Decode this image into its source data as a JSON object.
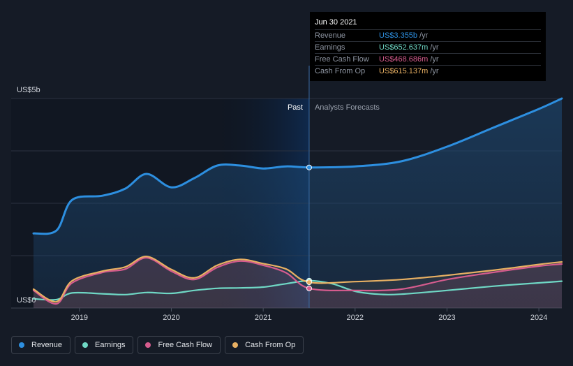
{
  "chart_data": {
    "type": "area",
    "x_domain": [
      2018.5,
      2024.25
    ],
    "y_domain_billions": [
      0,
      5
    ],
    "y_tick_labels": [
      "US$5b",
      "US$0"
    ],
    "x_ticks": [
      "2019",
      "2020",
      "2021",
      "2022",
      "2023",
      "2024"
    ],
    "divider_x": 2021.5,
    "past_label": "Past",
    "forecast_label": "Analysts Forecasts",
    "series": [
      {
        "name": "Revenue",
        "color": "#2d8fe0",
        "points": [
          [
            2018.5,
            1.78
          ],
          [
            2018.75,
            1.85
          ],
          [
            2018.92,
            2.58
          ],
          [
            2019.25,
            2.68
          ],
          [
            2019.5,
            2.85
          ],
          [
            2019.73,
            3.2
          ],
          [
            2020.0,
            2.88
          ],
          [
            2020.25,
            3.1
          ],
          [
            2020.5,
            3.4
          ],
          [
            2020.75,
            3.4
          ],
          [
            2021.0,
            3.33
          ],
          [
            2021.25,
            3.38
          ],
          [
            2021.5,
            3.355
          ],
          [
            2022.0,
            3.38
          ],
          [
            2022.5,
            3.5
          ],
          [
            2023.0,
            3.85
          ],
          [
            2023.5,
            4.3
          ],
          [
            2024.0,
            4.75
          ],
          [
            2024.25,
            5.0
          ]
        ]
      },
      {
        "name": "Earnings",
        "color": "#6fd8c5",
        "points": [
          [
            2018.5,
            0.22
          ],
          [
            2018.75,
            0.2
          ],
          [
            2018.92,
            0.36
          ],
          [
            2019.25,
            0.34
          ],
          [
            2019.5,
            0.32
          ],
          [
            2019.73,
            0.37
          ],
          [
            2020.0,
            0.35
          ],
          [
            2020.25,
            0.42
          ],
          [
            2020.5,
            0.47
          ],
          [
            2020.75,
            0.48
          ],
          [
            2021.0,
            0.5
          ],
          [
            2021.25,
            0.58
          ],
          [
            2021.5,
            0.652
          ],
          [
            2021.75,
            0.58
          ],
          [
            2022.0,
            0.4
          ],
          [
            2022.25,
            0.33
          ],
          [
            2022.5,
            0.33
          ],
          [
            2023.0,
            0.42
          ],
          [
            2023.5,
            0.52
          ],
          [
            2024.0,
            0.6
          ],
          [
            2024.25,
            0.64
          ]
        ]
      },
      {
        "name": "Free Cash Flow",
        "color": "#d65c8e",
        "points": [
          [
            2018.5,
            0.42
          ],
          [
            2018.75,
            0.1
          ],
          [
            2018.92,
            0.6
          ],
          [
            2019.25,
            0.85
          ],
          [
            2019.5,
            0.93
          ],
          [
            2019.73,
            1.2
          ],
          [
            2020.0,
            0.88
          ],
          [
            2020.25,
            0.68
          ],
          [
            2020.5,
            0.97
          ],
          [
            2020.75,
            1.12
          ],
          [
            2021.0,
            1.02
          ],
          [
            2021.25,
            0.84
          ],
          [
            2021.5,
            0.469
          ],
          [
            2022.0,
            0.42
          ],
          [
            2022.5,
            0.45
          ],
          [
            2023.0,
            0.68
          ],
          [
            2023.5,
            0.85
          ],
          [
            2024.0,
            1.0
          ],
          [
            2024.25,
            1.05
          ]
        ]
      },
      {
        "name": "Cash From Op",
        "color": "#e8b063",
        "points": [
          [
            2018.5,
            0.45
          ],
          [
            2018.75,
            0.15
          ],
          [
            2018.92,
            0.65
          ],
          [
            2019.25,
            0.88
          ],
          [
            2019.5,
            0.98
          ],
          [
            2019.73,
            1.23
          ],
          [
            2020.0,
            0.92
          ],
          [
            2020.25,
            0.72
          ],
          [
            2020.5,
            1.02
          ],
          [
            2020.75,
            1.16
          ],
          [
            2021.0,
            1.06
          ],
          [
            2021.25,
            0.93
          ],
          [
            2021.5,
            0.615
          ],
          [
            2022.0,
            0.63
          ],
          [
            2022.5,
            0.68
          ],
          [
            2023.0,
            0.78
          ],
          [
            2023.5,
            0.9
          ],
          [
            2024.0,
            1.04
          ],
          [
            2024.25,
            1.1
          ]
        ]
      }
    ]
  },
  "tooltip": {
    "date": "Jun 30 2021",
    "rows": [
      {
        "label": "Revenue",
        "value": "US$3.355b",
        "unit": "/yr",
        "color": "#2d8fe0"
      },
      {
        "label": "Earnings",
        "value": "US$652.637m",
        "unit": "/yr",
        "color": "#6fd8c5"
      },
      {
        "label": "Free Cash Flow",
        "value": "US$468.686m",
        "unit": "/yr",
        "color": "#d65c8e"
      },
      {
        "label": "Cash From Op",
        "value": "US$615.137m",
        "unit": "/yr",
        "color": "#e8b063"
      }
    ]
  },
  "legend": [
    {
      "label": "Revenue",
      "color": "#2d8fe0"
    },
    {
      "label": "Earnings",
      "color": "#6fd8c5"
    },
    {
      "label": "Free Cash Flow",
      "color": "#d65c8e"
    },
    {
      "label": "Cash From Op",
      "color": "#e8b063"
    }
  ]
}
